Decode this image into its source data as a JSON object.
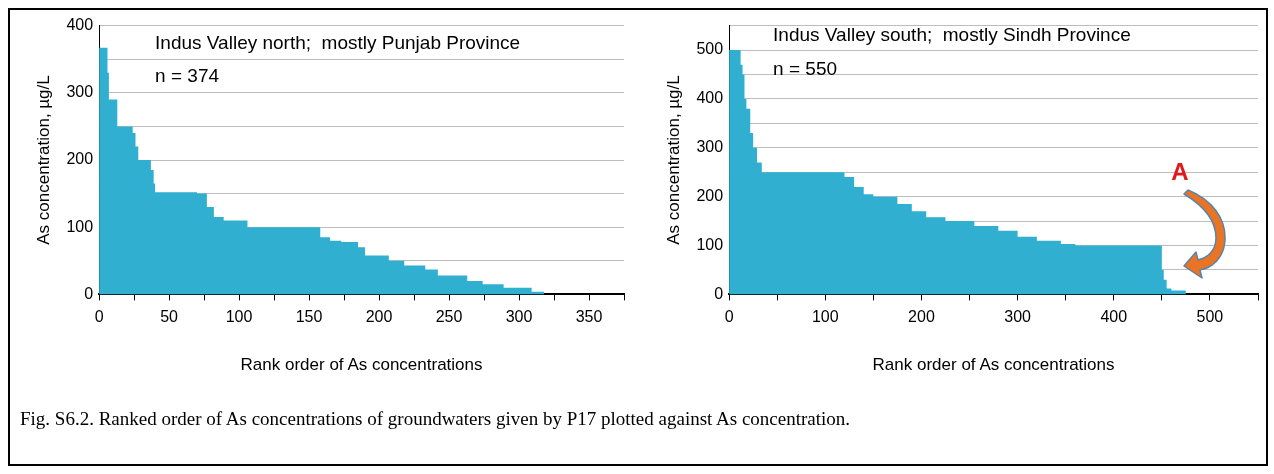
{
  "chart_data": [
    {
      "type": "area",
      "title": "Indus Valley north;  mostly Punjab Province",
      "xlabel": "Rank order of As concentrations",
      "ylabel": "As concentration, µg/L",
      "annotations": [
        "n = 374"
      ],
      "grid": "y",
      "legend": false,
      "x": [
        0,
        6,
        7,
        13,
        24,
        26,
        28,
        37,
        39,
        40,
        70,
        77,
        82,
        89,
        106,
        158,
        165,
        173,
        185,
        190,
        207,
        218,
        233,
        242,
        263,
        274,
        289,
        309,
        318
      ],
      "series": [
        {
          "color": "#31afd0",
          "values": [
            367,
            330,
            290,
            250,
            240,
            220,
            200,
            185,
            165,
            152,
            150,
            130,
            115,
            110,
            100,
            85,
            80,
            78,
            70,
            58,
            50,
            43,
            37,
            28,
            20,
            15,
            10,
            4,
            0
          ]
        }
      ],
      "xlim": [
        0,
        375
      ],
      "xticks": [
        0,
        {
          "value": 25,
          "label": null
        },
        50,
        {
          "value": 75,
          "label": null
        },
        100,
        {
          "value": 125,
          "label": null
        },
        150,
        {
          "value": 175,
          "label": null
        },
        200,
        {
          "value": 225,
          "label": null
        },
        250,
        {
          "value": 275,
          "label": null
        },
        300,
        {
          "value": 325,
          "label": null
        },
        350,
        {
          "value": 375,
          "label": null
        }
      ],
      "ylim": [
        0,
        400
      ],
      "yticks": [
        0,
        {
          "value": 50,
          "label": null
        },
        100,
        {
          "value": 150,
          "label": null
        },
        200,
        {
          "value": 250,
          "label": null
        },
        300,
        {
          "value": 350,
          "label": null
        },
        400
      ]
    },
    {
      "type": "area",
      "title": "Indus Valley south;  mostly Sindh Province",
      "xlabel": "Rank order of As concentrations",
      "ylabel": "As concentration, µg/L",
      "annotations": [
        "n = 550",
        "A"
      ],
      "grid": "y",
      "legend": false,
      "x": [
        0,
        12,
        14,
        16,
        18,
        22,
        25,
        29,
        34,
        120,
        130,
        140,
        150,
        175,
        190,
        205,
        225,
        255,
        280,
        300,
        320,
        345,
        360,
        450,
        452,
        455,
        460,
        475
      ],
      "series": [
        {
          "color": "#31afd0",
          "values": [
            500,
            470,
            450,
            400,
            380,
            330,
            300,
            270,
            250,
            240,
            220,
            205,
            200,
            185,
            170,
            158,
            150,
            140,
            130,
            118,
            110,
            103,
            100,
            50,
            30,
            12,
            8,
            0
          ]
        }
      ],
      "xlim": [
        0,
        550
      ],
      "xticks": [
        0,
        {
          "value": 50,
          "label": null
        },
        100,
        {
          "value": 150,
          "label": null
        },
        200,
        {
          "value": 250,
          "label": null
        },
        300,
        {
          "value": 350,
          "label": null
        },
        400,
        {
          "value": 450,
          "label": null
        },
        500,
        {
          "value": 550,
          "label": null
        }
      ],
      "ylim": [
        0,
        550
      ],
      "yticks": [
        0,
        {
          "value": 50,
          "label": null
        },
        100,
        {
          "value": 150,
          "label": null
        },
        200,
        {
          "value": 250,
          "label": null
        },
        300,
        {
          "value": 350,
          "label": null
        },
        400,
        {
          "value": 450,
          "label": null
        },
        500,
        {
          "value": 550,
          "label": null
        }
      ]
    },
    {
      "type": "other",
      "annotations": [
        "Fig. S6.2. Ranked order of As concentrations of groundwaters given by P17 plotted against As concentration."
      ]
    }
  ]
}
